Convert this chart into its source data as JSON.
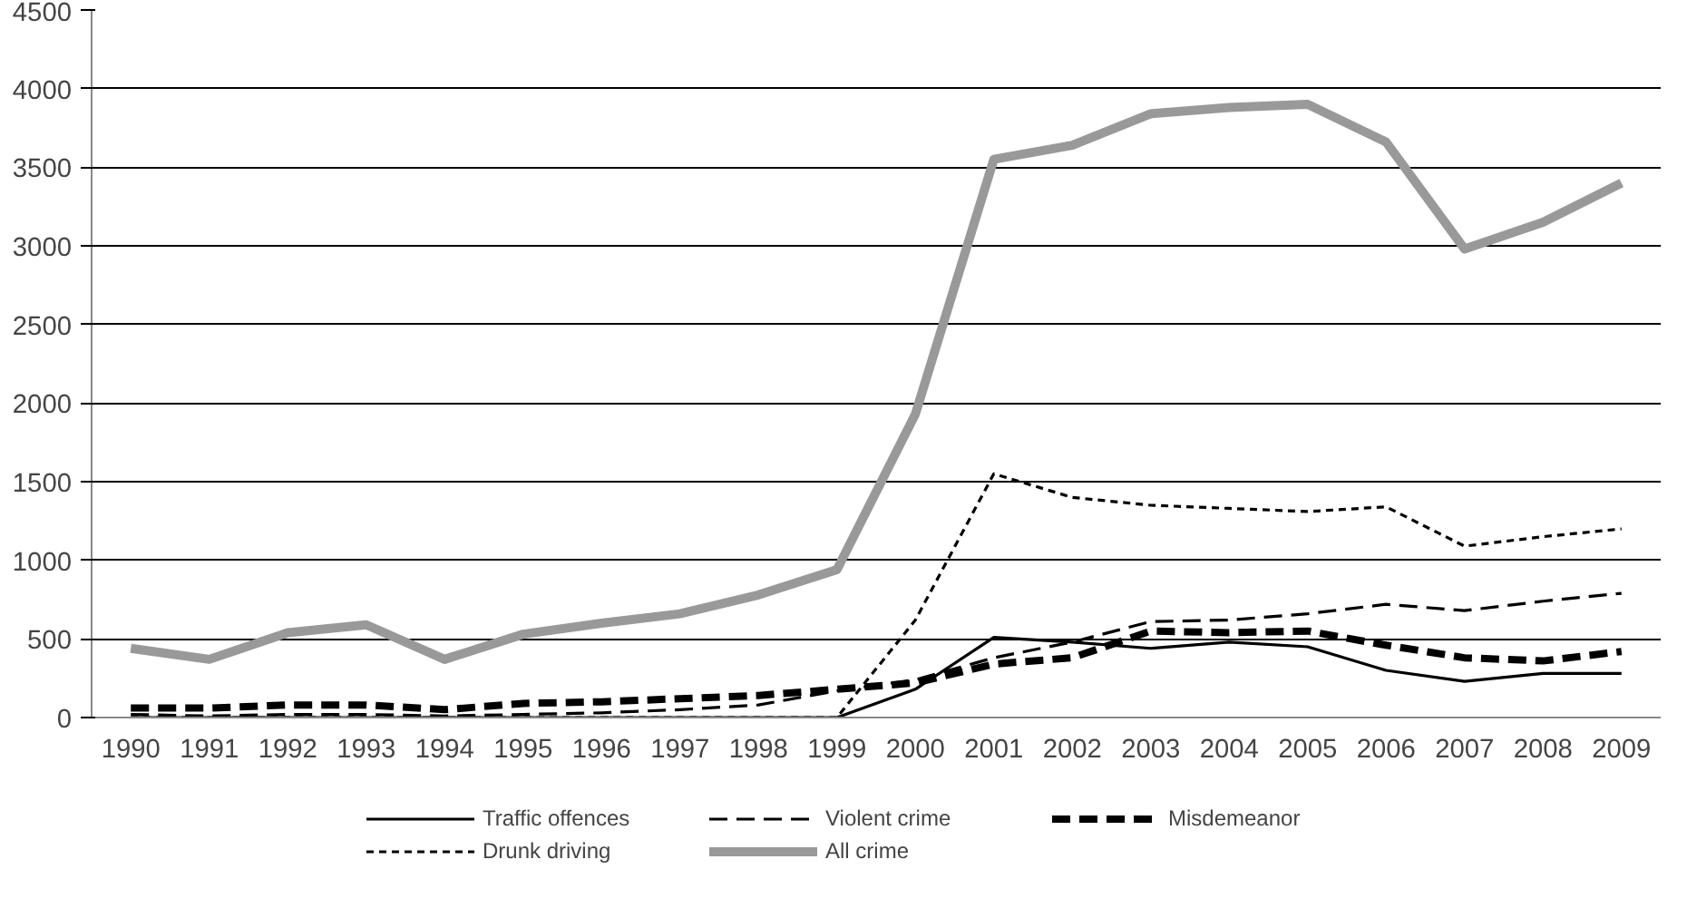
{
  "chart_data": {
    "type": "line",
    "categories": [
      "1990",
      "1991",
      "1992",
      "1993",
      "1994",
      "1995",
      "1996",
      "1997",
      "1998",
      "1999",
      "2000",
      "2001",
      "2002",
      "2003",
      "2004",
      "2005",
      "2006",
      "2007",
      "2008",
      "2009"
    ],
    "series": [
      {
        "name": "Traffic offences",
        "color": "#000000",
        "line_style": "solid",
        "values": [
          0,
          0,
          0,
          0,
          0,
          0,
          0,
          0,
          0,
          0,
          180,
          510,
          480,
          440,
          480,
          450,
          300,
          230,
          280,
          280
        ]
      },
      {
        "name": "Violent crime",
        "color": "#000000",
        "line_style": "dashed",
        "values": [
          20,
          10,
          20,
          20,
          10,
          20,
          30,
          50,
          80,
          170,
          240,
          380,
          480,
          610,
          620,
          660,
          720,
          680,
          740,
          790
        ]
      },
      {
        "name": "Misdemeanor",
        "color": "#000000",
        "line_style": "dashed",
        "values": [
          60,
          60,
          80,
          80,
          50,
          90,
          100,
          120,
          140,
          180,
          220,
          340,
          380,
          550,
          540,
          550,
          460,
          380,
          360,
          420
        ]
      },
      {
        "name": "Drunk driving",
        "color": "#000000",
        "line_style": "dotted",
        "values": [
          0,
          0,
          0,
          0,
          0,
          0,
          0,
          0,
          0,
          0,
          620,
          1550,
          1400,
          1350,
          1330,
          1310,
          1340,
          1090,
          1150,
          1200
        ]
      },
      {
        "name": "All crime",
        "color": "#999999",
        "line_style": "solid",
        "values": [
          440,
          370,
          540,
          590,
          370,
          530,
          600,
          660,
          780,
          940,
          1930,
          3550,
          3640,
          3840,
          3880,
          3900,
          3660,
          2980,
          3150,
          3400
        ]
      }
    ],
    "ylim": [
      0,
      4500
    ],
    "yticks": [
      0,
      500,
      1000,
      1500,
      2000,
      2500,
      3000,
      3500,
      4000,
      4500
    ],
    "grid": "y",
    "legend": "bottom",
    "marker": "none"
  }
}
